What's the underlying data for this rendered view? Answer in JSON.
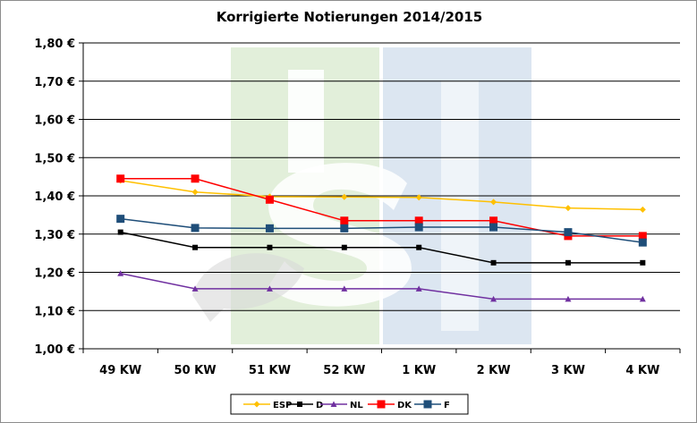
{
  "chart_data": {
    "type": "line",
    "title": "Korrigierte Notierungen 2014/2015",
    "xlabel": "",
    "ylabel": "",
    "categories": [
      "49 KW",
      "50 KW",
      "51 KW",
      "52 KW",
      "1 KW",
      "2 KW",
      "3 KW",
      "4 KW"
    ],
    "ylim": [
      1.0,
      1.8
    ],
    "yticks": [
      1.0,
      1.1,
      1.2,
      1.3,
      1.4,
      1.5,
      1.6,
      1.7,
      1.8
    ],
    "ytick_labels": [
      "1,00 €",
      "1,10 €",
      "1,20 €",
      "1,30 €",
      "1,40 €",
      "1,50 €",
      "1,60 €",
      "1,70 €",
      "1,80 €"
    ],
    "grid": true,
    "legend_position": "bottom",
    "series": [
      {
        "name": "ESP",
        "color": "#FFC000",
        "marker": "diamond",
        "values": [
          1.44,
          1.41,
          1.398,
          1.397,
          1.396,
          1.384,
          1.368,
          1.364
        ]
      },
      {
        "name": "D",
        "color": "#000000",
        "marker": "square-small",
        "values": [
          1.305,
          1.265,
          1.265,
          1.265,
          1.265,
          1.225,
          1.225,
          1.225
        ]
      },
      {
        "name": "NL",
        "color": "#7030A0",
        "marker": "triangle",
        "values": [
          1.197,
          1.157,
          1.157,
          1.157,
          1.157,
          1.13,
          1.13,
          1.13
        ]
      },
      {
        "name": "DK",
        "color": "#FF0000",
        "marker": "square",
        "values": [
          1.445,
          1.445,
          1.39,
          1.335,
          1.335,
          1.335,
          1.295,
          1.295
        ]
      },
      {
        "name": "F",
        "color": "#1F4E79",
        "marker": "square",
        "values": [
          1.34,
          1.316,
          1.315,
          1.315,
          1.318,
          1.318,
          1.305,
          1.278
        ]
      }
    ]
  },
  "watermark": {
    "text": "ISN",
    "colors": [
      "#E2EFDA",
      "#DCE6F1"
    ]
  }
}
